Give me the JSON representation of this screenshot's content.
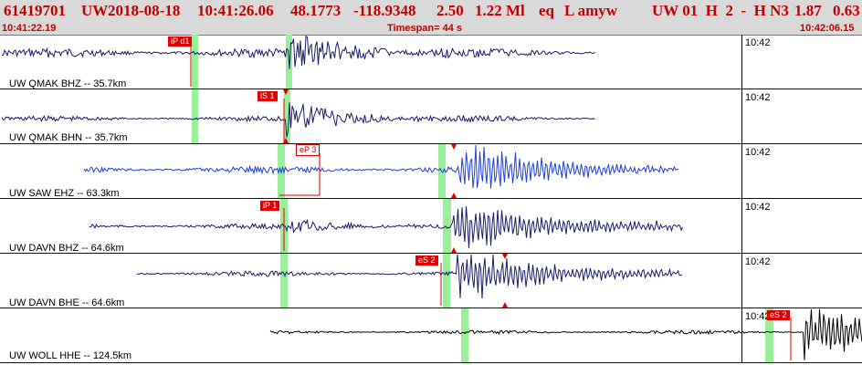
{
  "header": {
    "event_id": "61419701",
    "network": "UW",
    "origin_date": "2018-08-18",
    "origin_time": "10:41:26.06",
    "latitude": "48.1773",
    "longitude": "-118.9348",
    "depth": "2.50",
    "magnitude": "1.22 Ml",
    "event_type": "eq",
    "event_flags": "L amyw",
    "summary_codes": "UW 01  H  2  -  H N3",
    "rms": "1.87",
    "quality": "0.63",
    "start_time": "10:41:22.19",
    "timespan": "Timespan=  44 s",
    "end_time": "10:42:06.15"
  },
  "colors": {
    "header_bg": "#d9d9d9",
    "header_text": "#c00000",
    "pick_red": "#e00000",
    "window_green": "#99f099",
    "trace_navy": "#1a1a6e",
    "trace_blue": "#1f3fe0",
    "trace_black": "#000000"
  },
  "panels": [
    {
      "channel": "UW QMAK BHZ -- 35.7km",
      "time_mark": "10:42",
      "trace_color": "#1a1a6e",
      "picks": [
        {
          "label": "iP d1",
          "style": "red"
        }
      ]
    },
    {
      "channel": "UW QMAK BHN -- 35.7km",
      "time_mark": "10:42",
      "trace_color": "#1a1a6e",
      "picks": [
        {
          "label": "iS 1",
          "style": "red"
        }
      ]
    },
    {
      "channel": "UW SAW EHZ -- 63.3km",
      "time_mark": "10:42",
      "trace_color": "#1f3fe0",
      "picks": [
        {
          "label": "eP 3",
          "style": "outline"
        }
      ]
    },
    {
      "channel": "UW DAVN BHZ -- 64.6km",
      "time_mark": "10:42",
      "trace_color": "#1a1a6e",
      "picks": [
        {
          "label": "iP 1",
          "style": "red"
        }
      ]
    },
    {
      "channel": "UW DAVN BHE -- 64.6km",
      "time_mark": "10:42",
      "trace_color": "#1a1a6e",
      "picks": [
        {
          "label": "eS 2",
          "style": "red"
        }
      ]
    },
    {
      "channel": "UW WOLL HHE -- 124.5km",
      "time_mark": "10:42",
      "trace_color": "#000000",
      "picks": [
        {
          "label": "eS 2",
          "style": "red"
        }
      ]
    }
  ]
}
